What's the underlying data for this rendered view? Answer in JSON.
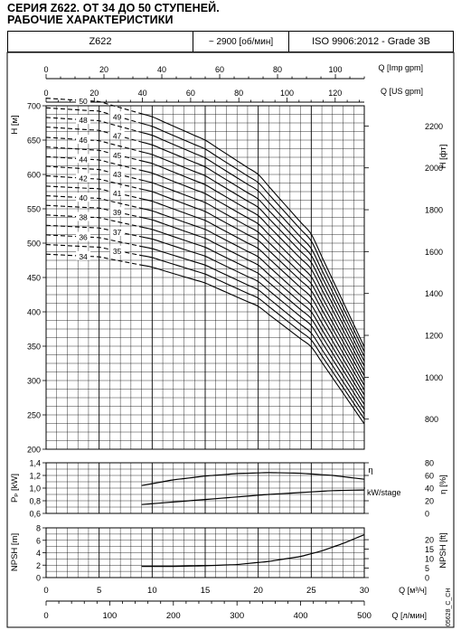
{
  "title_line1": "СЕРИЯ Z622. ОТ 34 ДО 50 СТУПЕНЕЙ.",
  "title_line2": "РАБОЧИЕ ХАРАКТЕРИСТИКИ",
  "header": {
    "model": "Z622",
    "speed": "~ 2900 [об/мин]",
    "standard": "ISO 9906:2012 - Grade 3B"
  },
  "footer_code": "05628_C_CH",
  "chart_data": [
    {
      "type": "line",
      "name": "head_curves",
      "ylabel": "H [м]",
      "y2label": "H [фт]",
      "x_unit": "Q [м³/ч]",
      "x_range": [
        0,
        30
      ],
      "ylim": [
        200,
        700
      ],
      "y_ticks": [
        200,
        250,
        300,
        350,
        400,
        450,
        500,
        550,
        600,
        650,
        700
      ],
      "y2_ticks": [
        800,
        1000,
        1200,
        1400,
        1600,
        1800,
        2000,
        2200
      ],
      "grid": true,
      "curve_x": [
        0,
        5,
        10,
        15,
        20,
        25,
        30
      ],
      "curve_start_x": 9,
      "dashed_until_x": 9,
      "stages": [
        34,
        35,
        36,
        37,
        38,
        39,
        40,
        41,
        42,
        43,
        44,
        45,
        46,
        47,
        48,
        49,
        50
      ],
      "series": [
        {
          "name": "34",
          "values": [
            484,
            480,
            465,
            442,
            408,
            349,
            237
          ]
        },
        {
          "name": "35",
          "values": [
            498,
            494,
            479,
            455,
            420,
            359,
            244
          ]
        },
        {
          "name": "36",
          "values": [
            512,
            508,
            492,
            468,
            432,
            369,
            251
          ]
        },
        {
          "name": "37",
          "values": [
            526,
            522,
            506,
            481,
            444,
            380,
            258
          ]
        },
        {
          "name": "38",
          "values": [
            541,
            537,
            520,
            494,
            456,
            390,
            265
          ]
        },
        {
          "name": "39",
          "values": [
            555,
            551,
            534,
            507,
            468,
            400,
            272
          ]
        },
        {
          "name": "40",
          "values": [
            569,
            565,
            547,
            520,
            480,
            410,
            279
          ]
        },
        {
          "name": "41",
          "values": [
            583,
            579,
            561,
            533,
            492,
            421,
            286
          ]
        },
        {
          "name": "42",
          "values": [
            598,
            593,
            575,
            546,
            504,
            431,
            293
          ]
        },
        {
          "name": "43",
          "values": [
            612,
            607,
            588,
            559,
            516,
            441,
            300
          ]
        },
        {
          "name": "44",
          "values": [
            626,
            621,
            602,
            572,
            528,
            451,
            307
          ]
        },
        {
          "name": "45",
          "values": [
            640,
            635,
            616,
            585,
            540,
            462,
            314
          ]
        },
        {
          "name": "46",
          "values": [
            654,
            649,
            629,
            598,
            552,
            472,
            321
          ]
        },
        {
          "name": "47",
          "values": [
            669,
            664,
            643,
            611,
            564,
            482,
            328
          ]
        },
        {
          "name": "48",
          "values": [
            683,
            678,
            657,
            624,
            576,
            492,
            335
          ]
        },
        {
          "name": "49",
          "values": [
            697,
            692,
            670,
            637,
            588,
            503,
            342
          ]
        },
        {
          "name": "50",
          "values": [
            711,
            706,
            684,
            650,
            600,
            513,
            349
          ]
        }
      ]
    },
    {
      "type": "line",
      "name": "power_efficiency",
      "ylabel": "Pₚ [kW]",
      "y2label": "η [%]",
      "ylim": [
        0.6,
        1.4
      ],
      "y_ticks": [
        0.6,
        0.8,
        1.0,
        1.2,
        1.4
      ],
      "y2lim": [
        0,
        80
      ],
      "y2_ticks": [
        0,
        20,
        40,
        60,
        80
      ],
      "grid": true,
      "series": [
        {
          "name": "η",
          "axis": "right",
          "x": [
            9,
            12,
            15,
            18,
            21,
            24,
            27,
            30
          ],
          "values": [
            44,
            53,
            59,
            63,
            64.5,
            63.5,
            60,
            54
          ]
        },
        {
          "name": "kW/stage",
          "axis": "left",
          "x": [
            9,
            12,
            15,
            18,
            21,
            24,
            27,
            30
          ],
          "values": [
            0.74,
            0.78,
            0.82,
            0.86,
            0.9,
            0.93,
            0.96,
            0.97
          ]
        }
      ]
    },
    {
      "type": "line",
      "name": "npsh",
      "ylabel": "NPSH [m]",
      "y2label": "NPSH [ft]",
      "xlabel": "Q [м³/ч]",
      "ylim": [
        0,
        8
      ],
      "y_ticks": [
        0,
        2,
        4,
        6,
        8
      ],
      "y2_ticks": [
        0,
        5,
        10,
        15,
        20
      ],
      "grid": true,
      "series": [
        {
          "name": "NPSH",
          "x": [
            9,
            12,
            15,
            18,
            21,
            24,
            26,
            28,
            30
          ],
          "values": [
            1.8,
            1.8,
            1.9,
            2.1,
            2.6,
            3.4,
            4.3,
            5.5,
            6.9
          ]
        }
      ]
    }
  ],
  "axes": {
    "imp_gpm": {
      "label": "Q [Imp gpm]",
      "ticks": [
        0,
        20,
        40,
        60,
        80,
        100
      ]
    },
    "us_gpm": {
      "label": "Q [US gpm]",
      "ticks": [
        0,
        20,
        40,
        60,
        80,
        100,
        120
      ]
    },
    "m3h": {
      "label": "Q [м³/ч]",
      "ticks": [
        0,
        5,
        10,
        15,
        20,
        25,
        30
      ]
    },
    "lmin": {
      "label": "Q [л/мин]",
      "ticks": [
        0,
        100,
        200,
        300,
        400,
        500
      ]
    }
  },
  "labels": {
    "eta": "η",
    "kw_stage": "kW/stage"
  }
}
